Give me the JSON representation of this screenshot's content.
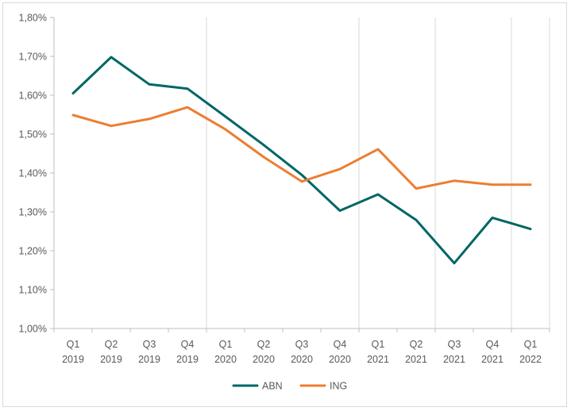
{
  "chart_data": {
    "type": "line",
    "categories": [
      [
        "Q1",
        "2019"
      ],
      [
        "Q2",
        "2019"
      ],
      [
        "Q3",
        "2019"
      ],
      [
        "Q4",
        "2019"
      ],
      [
        "Q1",
        "2020"
      ],
      [
        "Q2",
        "2020"
      ],
      [
        "Q3",
        "2020"
      ],
      [
        "Q4",
        "2020"
      ],
      [
        "Q1",
        "2021"
      ],
      [
        "Q2",
        "2021"
      ],
      [
        "Q3",
        "2021"
      ],
      [
        "Q4",
        "2021"
      ],
      [
        "Q1",
        "2022"
      ]
    ],
    "y_ticks": [
      "1,00%",
      "1,10%",
      "1,20%",
      "1,30%",
      "1,40%",
      "1,50%",
      "1,60%",
      "1,70%",
      "1,80%"
    ],
    "ylim": [
      1.0,
      1.8
    ],
    "y_unit": "%",
    "gridlines": "vertical at Q4 2019, Q3 2020, Q1 2021, Q3 2021, Q4 2021",
    "legend_position": "bottom",
    "series": [
      {
        "name": "ABN",
        "color": "#006666",
        "values": [
          1.605,
          1.698,
          1.628,
          1.617,
          1.545,
          1.472,
          1.395,
          1.303,
          1.345,
          1.279,
          1.168,
          1.285,
          1.256
        ]
      },
      {
        "name": "ING",
        "color": "#ed7d31",
        "values": [
          1.549,
          1.521,
          1.539,
          1.569,
          1.512,
          1.441,
          1.378,
          1.41,
          1.461,
          1.36,
          1.38,
          1.37,
          1.37
        ]
      }
    ]
  }
}
